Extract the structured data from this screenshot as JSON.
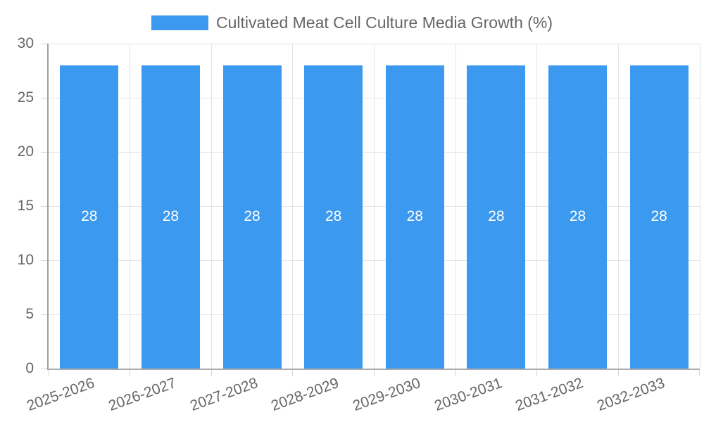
{
  "legend": {
    "label": "Cultivated Meat Cell Culture Media Growth (%)",
    "swatch_color": "#3B99F0"
  },
  "chart_data": {
    "type": "bar",
    "title": "Cultivated Meat Cell Culture Media Growth (%)",
    "categories": [
      "2025-2026",
      "2026-2027",
      "2027-2028",
      "2028-2029",
      "2029-2030",
      "2030-2031",
      "2031-2032",
      "2032-2033"
    ],
    "values": [
      28,
      28,
      28,
      28,
      28,
      28,
      28,
      28
    ],
    "bar_labels": [
      "28",
      "28",
      "28",
      "28",
      "28",
      "28",
      "28",
      "28"
    ],
    "xlabel": "",
    "ylabel": "",
    "ylim": [
      0,
      30
    ],
    "yticks": [
      0,
      5,
      10,
      15,
      20,
      25,
      30
    ],
    "grid": true,
    "legend_position": "top",
    "x_tick_rotation_deg": -20,
    "colors": {
      "bar": "#3B99F0",
      "bar_label": "#FFFFFF",
      "grid": "#E4E4E4",
      "y_axis": "#9E9E9E",
      "x_axis": "#ABABAB",
      "tick_mark": "#D6D6D6",
      "tick_text": "#666666",
      "background": "#FFFFFF"
    }
  }
}
